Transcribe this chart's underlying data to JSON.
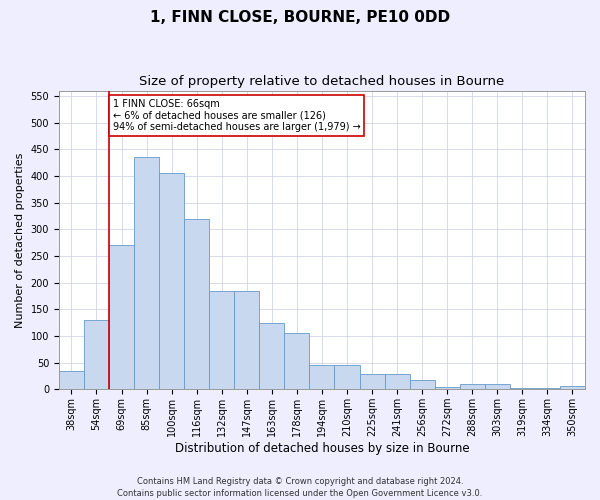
{
  "title": "1, FINN CLOSE, BOURNE, PE10 0DD",
  "subtitle": "Size of property relative to detached houses in Bourne",
  "xlabel": "Distribution of detached houses by size in Bourne",
  "ylabel": "Number of detached properties",
  "categories": [
    "38sqm",
    "54sqm",
    "69sqm",
    "85sqm",
    "100sqm",
    "116sqm",
    "132sqm",
    "147sqm",
    "163sqm",
    "178sqm",
    "194sqm",
    "210sqm",
    "225sqm",
    "241sqm",
    "256sqm",
    "272sqm",
    "288sqm",
    "303sqm",
    "319sqm",
    "334sqm",
    "350sqm"
  ],
  "values": [
    35,
    130,
    270,
    435,
    405,
    320,
    185,
    185,
    125,
    105,
    45,
    45,
    28,
    28,
    18,
    5,
    10,
    10,
    3,
    3,
    7
  ],
  "bar_color": "#c8d8ee",
  "bar_edge_color": "#6699cc",
  "vline_color": "#cc0000",
  "vline_x_index": 1.5,
  "annotation_text": "1 FINN CLOSE: 66sqm\n← 6% of detached houses are smaller (126)\n94% of semi-detached houses are larger (1,979) →",
  "annotation_box_facecolor": "#ffffff",
  "annotation_box_edgecolor": "#cc0000",
  "ylim": [
    0,
    560
  ],
  "yticks": [
    0,
    50,
    100,
    150,
    200,
    250,
    300,
    350,
    400,
    450,
    500,
    550
  ],
  "footer_line1": "Contains HM Land Registry data © Crown copyright and database right 2024.",
  "footer_line2": "Contains public sector information licensed under the Open Government Licence v3.0.",
  "background_color": "#eeeeff",
  "plot_bg_color": "#ffffff",
  "grid_color": "#c8cce0",
  "title_fontsize": 11,
  "subtitle_fontsize": 9.5,
  "tick_fontsize": 7,
  "ylabel_fontsize": 8,
  "xlabel_fontsize": 8.5,
  "annotation_fontsize": 7,
  "footer_fontsize": 6
}
